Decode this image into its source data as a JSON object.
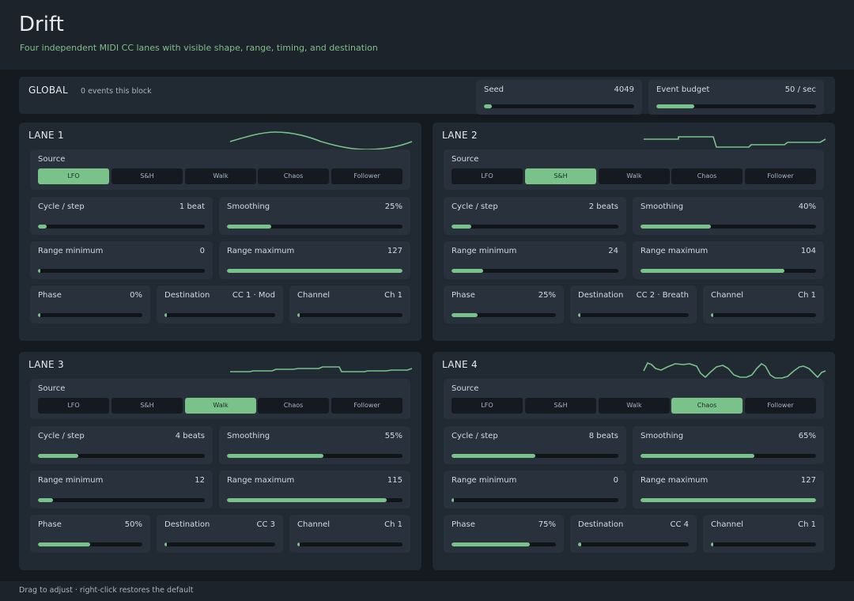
{
  "app": {
    "title": "Drift",
    "subtitle": "Four independent MIDI CC lanes with visible shape, range, timing, and destination"
  },
  "global": {
    "label": "GLOBAL",
    "events": "0 events this block",
    "seed": {
      "label": "Seed",
      "value": "4049",
      "level": 0.05
    },
    "budget": {
      "label": "Event budget",
      "value": "50 / sec",
      "level": 0.24
    }
  },
  "source_options": [
    "LFO",
    "S&H",
    "Walk",
    "Chaos",
    "Follower"
  ],
  "source_label": "Source",
  "lanes": [
    {
      "title": "LANE 1",
      "source": "LFO",
      "wave": "sine",
      "cycle": {
        "label": "Cycle / step",
        "value": "1 beat",
        "level": 0.05
      },
      "smoothing": {
        "label": "Smoothing",
        "value": "25%",
        "level": 0.25
      },
      "range_min": {
        "label": "Range minimum",
        "value": "0",
        "level": 0.0
      },
      "range_max": {
        "label": "Range maximum",
        "value": "127",
        "level": 1.0
      },
      "phase": {
        "label": "Phase",
        "value": "0%",
        "level": 0.0
      },
      "destination": {
        "label": "Destination",
        "value": "CC 1 · Mod",
        "level": 0.0
      },
      "channel": {
        "label": "Channel",
        "value": "Ch 1",
        "level": 0.0
      }
    },
    {
      "title": "LANE 2",
      "source": "S&H",
      "wave": "steps",
      "cycle": {
        "label": "Cycle / step",
        "value": "2 beats",
        "level": 0.12
      },
      "smoothing": {
        "label": "Smoothing",
        "value": "40%",
        "level": 0.4
      },
      "range_min": {
        "label": "Range minimum",
        "value": "24",
        "level": 0.19
      },
      "range_max": {
        "label": "Range maximum",
        "value": "104",
        "level": 0.82
      },
      "phase": {
        "label": "Phase",
        "value": "25%",
        "level": 0.25
      },
      "destination": {
        "label": "Destination",
        "value": "CC 2 · Breath",
        "level": 0.0
      },
      "channel": {
        "label": "Channel",
        "value": "Ch 1",
        "level": 0.0
      }
    },
    {
      "title": "LANE 3",
      "source": "Walk",
      "wave": "walk",
      "cycle": {
        "label": "Cycle / step",
        "value": "4 beats",
        "level": 0.24
      },
      "smoothing": {
        "label": "Smoothing",
        "value": "55%",
        "level": 0.55
      },
      "range_min": {
        "label": "Range minimum",
        "value": "12",
        "level": 0.09
      },
      "range_max": {
        "label": "Range maximum",
        "value": "115",
        "level": 0.91
      },
      "phase": {
        "label": "Phase",
        "value": "50%",
        "level": 0.5
      },
      "destination": {
        "label": "Destination",
        "value": "CC 3",
        "level": 0.02
      },
      "channel": {
        "label": "Channel",
        "value": "Ch 1",
        "level": 0.0
      }
    },
    {
      "title": "LANE 4",
      "source": "Chaos",
      "wave": "chaos",
      "cycle": {
        "label": "Cycle / step",
        "value": "8 beats",
        "level": 0.5
      },
      "smoothing": {
        "label": "Smoothing",
        "value": "65%",
        "level": 0.65
      },
      "range_min": {
        "label": "Range minimum",
        "value": "0",
        "level": 0.0
      },
      "range_max": {
        "label": "Range maximum",
        "value": "127",
        "level": 1.0
      },
      "phase": {
        "label": "Phase",
        "value": "75%",
        "level": 0.75
      },
      "destination": {
        "label": "Destination",
        "value": "CC 4",
        "level": 0.03
      },
      "channel": {
        "label": "Channel",
        "value": "Ch 1",
        "level": 0.0
      }
    }
  ],
  "footer": "Drag to adjust · right-click restores the default",
  "colors": {
    "accent": "#79c28a",
    "background": "#151a20",
    "panel": "#212932",
    "card": "#29323c"
  }
}
